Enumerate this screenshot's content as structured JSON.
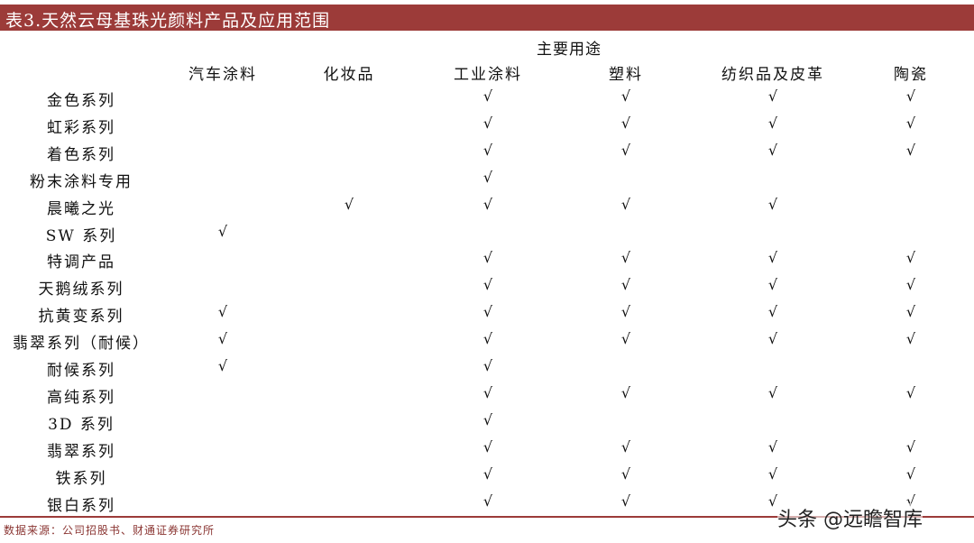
{
  "title": "表3.天然云母基珠光颜料产品及应用范围",
  "group_header": "主要用途",
  "columns": [
    "汽车涂料",
    "化妆品",
    "工业涂料",
    "塑料",
    "纺织品及皮革",
    "陶瓷"
  ],
  "check_symbol": "√",
  "rows": [
    {
      "label": "金色系列",
      "checks": [
        0,
        0,
        1,
        1,
        1,
        1
      ]
    },
    {
      "label": "虹彩系列",
      "checks": [
        0,
        0,
        1,
        1,
        1,
        1
      ]
    },
    {
      "label": "着色系列",
      "checks": [
        0,
        0,
        1,
        1,
        1,
        1
      ]
    },
    {
      "label": "粉末涂料专用",
      "checks": [
        0,
        0,
        1,
        0,
        0,
        0
      ]
    },
    {
      "label": "晨曦之光",
      "checks": [
        0,
        1,
        1,
        1,
        1,
        0
      ]
    },
    {
      "label": "SW 系列",
      "checks": [
        1,
        0,
        0,
        0,
        0,
        0
      ]
    },
    {
      "label": "特调产品",
      "checks": [
        0,
        0,
        1,
        1,
        1,
        1
      ]
    },
    {
      "label": "天鹅绒系列",
      "checks": [
        0,
        0,
        1,
        1,
        1,
        1
      ]
    },
    {
      "label": "抗黄变系列",
      "checks": [
        1,
        0,
        1,
        1,
        1,
        1
      ]
    },
    {
      "label": "翡翠系列（耐候）",
      "checks": [
        1,
        0,
        1,
        1,
        1,
        1
      ]
    },
    {
      "label": "耐候系列",
      "checks": [
        1,
        0,
        1,
        0,
        0,
        0
      ]
    },
    {
      "label": "高纯系列",
      "checks": [
        0,
        0,
        1,
        1,
        1,
        1
      ]
    },
    {
      "label": "3D 系列",
      "checks": [
        0,
        0,
        1,
        0,
        0,
        0
      ]
    },
    {
      "label": "翡翠系列",
      "checks": [
        0,
        0,
        1,
        1,
        1,
        1
      ]
    },
    {
      "label": "铁系列",
      "checks": [
        0,
        0,
        1,
        1,
        1,
        1
      ]
    },
    {
      "label": "银白系列",
      "checks": [
        0,
        0,
        1,
        1,
        1,
        1
      ]
    }
  ],
  "source": "数据来源：公司招股书、财通证券研究所",
  "watermark": "头条 @远瞻智库",
  "colors": {
    "accent": "#9c3b39"
  }
}
